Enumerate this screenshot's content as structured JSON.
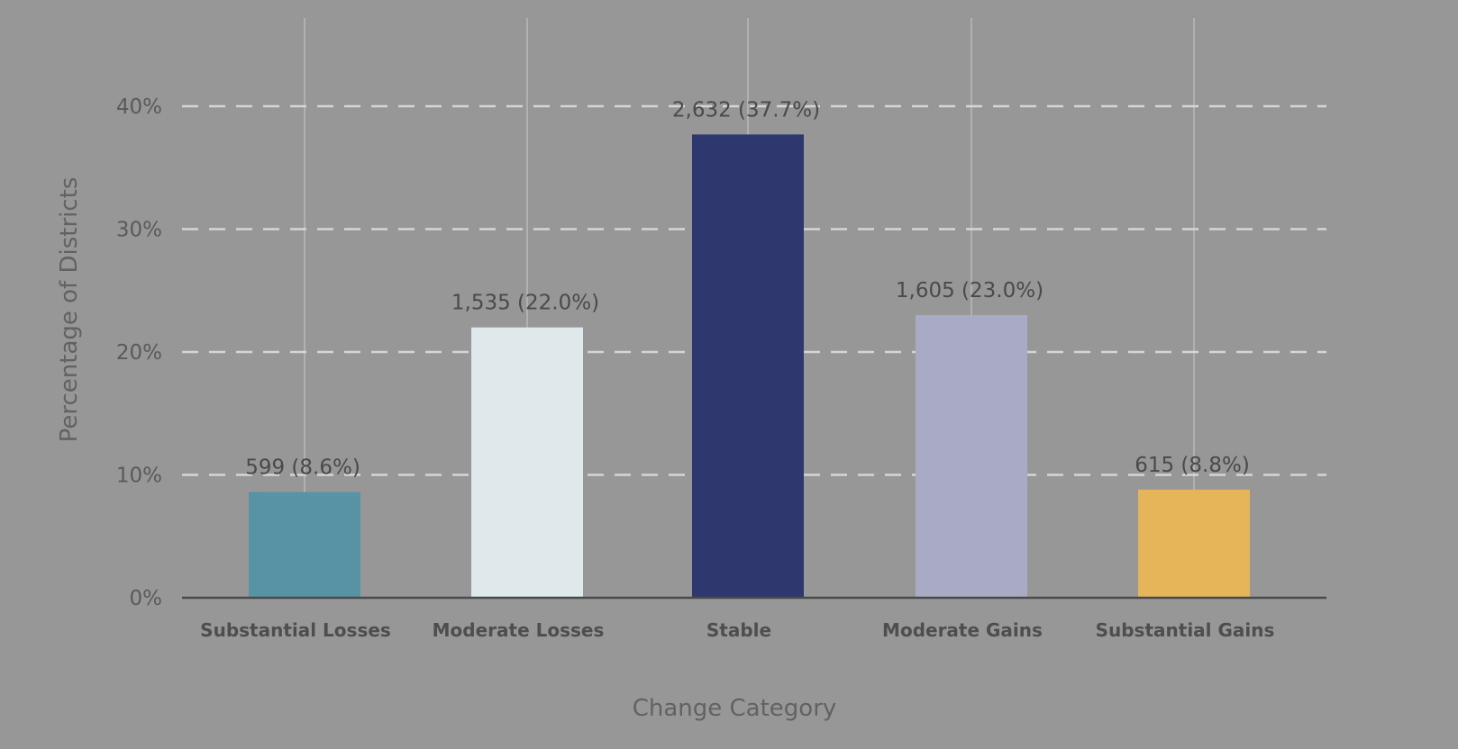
{
  "chart_data": {
    "type": "bar",
    "title": "",
    "xlabel": "Change Category",
    "ylabel": "Percentage of Districts",
    "categories": [
      "Substantial Losses",
      "Moderate Losses",
      "Stable",
      "Moderate Gains",
      "Substantial Gains"
    ],
    "values": [
      8.6,
      22.0,
      37.7,
      23.0,
      8.8
    ],
    "counts": [
      599,
      1535,
      2632,
      1605,
      615
    ],
    "data_labels": [
      "599 (8.6%)",
      "1,535 (22.0%)",
      "2,632 (37.7%)",
      "1,605 (23.0%)",
      "615 (8.8%)"
    ],
    "colors": [
      "#5893a5",
      "#dfe9eb",
      "#2e376e",
      "#a9abc4",
      "#e6b559"
    ],
    "ylim": [
      0,
      40
    ],
    "yticks": [
      0,
      10,
      20,
      30,
      40
    ],
    "ytick_labels": [
      "0%",
      "10%",
      "20%",
      "30%",
      "40%"
    ],
    "grid": true,
    "legend": "none"
  }
}
